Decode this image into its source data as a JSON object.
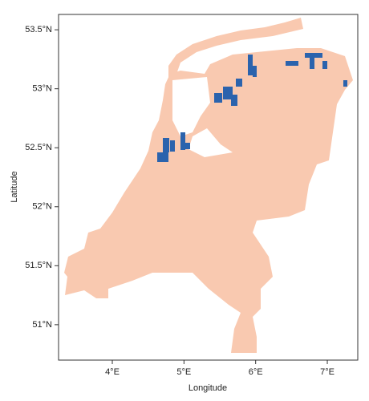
{
  "chart_data": {
    "type": "map",
    "xlabel": "Longitude",
    "ylabel": "Latitude",
    "xlim": [
      3.25,
      7.425
    ],
    "ylim": [
      50.7,
      53.63
    ],
    "xticks": [
      {
        "value": 4,
        "label": "4°E"
      },
      {
        "value": 5,
        "label": "5°E"
      },
      {
        "value": 6,
        "label": "6°E"
      },
      {
        "value": 7,
        "label": "7°E"
      }
    ],
    "yticks": [
      {
        "value": 51,
        "label": "51°N"
      },
      {
        "value": 51.5,
        "label": "51.5°N"
      },
      {
        "value": 52,
        "label": "52°N"
      },
      {
        "value": 52.5,
        "label": "52.5°N"
      },
      {
        "value": 53,
        "label": "53°N"
      },
      {
        "value": 53.5,
        "label": "53.5°N"
      }
    ]
  }
}
